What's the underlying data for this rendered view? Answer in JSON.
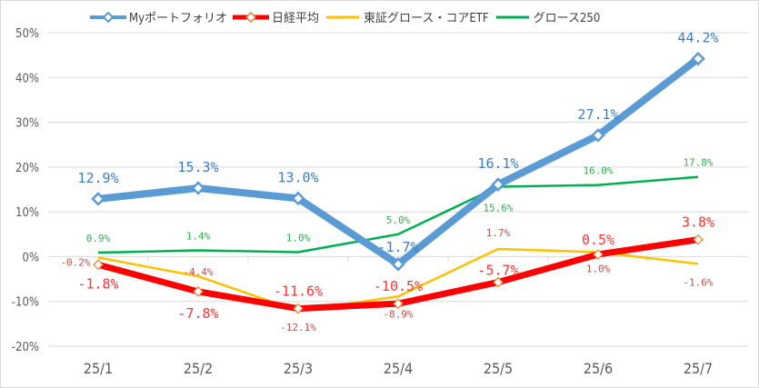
{
  "chart_data": {
    "type": "line",
    "title": "",
    "xlabel": "",
    "ylabel": "",
    "categories": [
      "25/1",
      "25/2",
      "25/3",
      "25/4",
      "25/5",
      "25/6",
      "25/7"
    ],
    "ylim": [
      -20,
      50
    ],
    "yticks": [
      -20,
      -10,
      0,
      10,
      20,
      30,
      40,
      50
    ],
    "ytick_labels": [
      "-20%",
      "-10%",
      "0%",
      "10%",
      "20%",
      "30%",
      "40%",
      "50%"
    ],
    "grid": true,
    "legend_position": "top",
    "series": [
      {
        "name": "Myポートフォリオ",
        "color": "#5b9bd5",
        "values": [
          12.9,
          15.3,
          13.0,
          -1.7,
          16.1,
          27.1,
          44.2
        ],
        "labels": [
          "12.9%",
          "15.3%",
          "13.0%",
          "-1.7%",
          "16.1%",
          "27.1%",
          "44.2%"
        ]
      },
      {
        "name": "日経平均",
        "color": "#ff0000",
        "values": [
          -1.8,
          -7.8,
          -11.6,
          -10.5,
          -5.7,
          0.5,
          3.8
        ],
        "labels": [
          "-1.8%",
          "-7.8%",
          "-11.6%",
          "-10.5%",
          "-5.7%",
          "0.5%",
          "3.8%"
        ]
      },
      {
        "name": "東証グロース・コアETF",
        "color": "#ffc000",
        "values": [
          -0.2,
          -4.4,
          -12.1,
          -8.9,
          1.7,
          1.0,
          -1.6
        ],
        "labels": [
          "-0.2%",
          "-4.4%",
          "-12.1%",
          "-8.9%",
          "1.7%",
          "1.0%",
          "-1.6%"
        ]
      },
      {
        "name": "グロース250",
        "color": "#00b050",
        "values": [
          0.9,
          1.4,
          1.0,
          5.0,
          15.6,
          16.0,
          17.8
        ],
        "labels": [
          "0.9%",
          "1.4%",
          "1.0%",
          "5.0%",
          "15.6%",
          "16.0%",
          "17.8%"
        ]
      }
    ]
  }
}
